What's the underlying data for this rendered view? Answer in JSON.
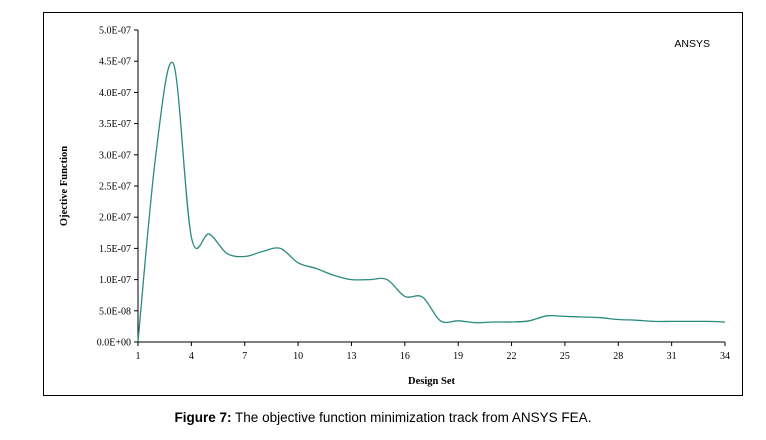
{
  "chart_data": {
    "type": "line",
    "title": "",
    "xlabel": "Design Set",
    "ylabel": "Ojective Function",
    "annotation": "ANSYS",
    "xlim": [
      1,
      34
    ],
    "ylim": [
      0,
      5e-07
    ],
    "x_ticks": [
      1,
      4,
      7,
      10,
      13,
      16,
      19,
      22,
      25,
      28,
      31,
      34
    ],
    "y_ticks": [
      0,
      5e-08,
      1e-07,
      1.5e-07,
      2e-07,
      2.5e-07,
      3e-07,
      3.5e-07,
      4e-07,
      4.5e-07,
      5e-07
    ],
    "y_tick_labels": [
      "0.0E+00",
      "5.0E-08",
      "1.0E-07",
      "1.5E-07",
      "2.0E-07",
      "2.5E-07",
      "3.0E-07",
      "3.5E-07",
      "4.0E-07",
      "4.5E-07",
      "5.0E-07"
    ],
    "grid": false,
    "legend": "none",
    "series": [
      {
        "color": "#2a8a80",
        "x": [
          1,
          2,
          3,
          4,
          5,
          6,
          7,
          8,
          9,
          10,
          11,
          12,
          13,
          14,
          15,
          16,
          17,
          18,
          19,
          20,
          21,
          22,
          23,
          24,
          25,
          26,
          27,
          28,
          29,
          30,
          31,
          32,
          33,
          34
        ],
        "y": [
          1e-09,
          3e-07,
          4.45e-07,
          1.68e-07,
          1.73e-07,
          1.42e-07,
          1.37e-07,
          1.45e-07,
          1.5e-07,
          1.27e-07,
          1.18e-07,
          1.07e-07,
          1e-07,
          1e-07,
          1e-07,
          7.3e-08,
          7.2e-08,
          3.4e-08,
          3.4e-08,
          3.1e-08,
          3.2e-08,
          3.2e-08,
          3.4e-08,
          4.2e-08,
          4.1e-08,
          4e-08,
          3.9e-08,
          3.6e-08,
          3.5e-08,
          3.3e-08,
          3.3e-08,
          3.3e-08,
          3.3e-08,
          3.2e-08
        ]
      }
    ]
  },
  "caption": {
    "label": "Figure 7:",
    "text": " The objective function minimization track from ANSYS FEA."
  }
}
